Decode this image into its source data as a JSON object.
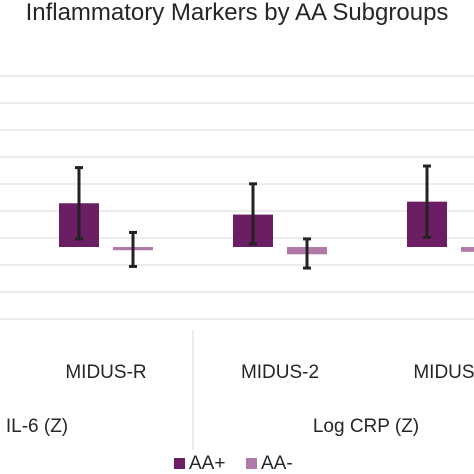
{
  "chart_data": {
    "type": "bar",
    "title": "Inflammatory Markers by AA Subgroups",
    "categories": [
      "MIDUS-R",
      "MIDUS-2",
      "MIDUS-R"
    ],
    "groups": [
      "IL-6 (Z)",
      "Log CRP (Z)"
    ],
    "group_spans": [
      [
        0,
        0
      ],
      [
        1,
        2
      ]
    ],
    "ylim": [
      -0.45,
      0.85
    ],
    "grid": true,
    "legend_position": "bottom",
    "series": [
      {
        "name": "AA+",
        "color": "#6b1e63",
        "values": [
          0.27,
          0.2,
          0.28
        ],
        "error_low": [
          0.05,
          0.02,
          0.06
        ],
        "error_high": [
          0.49,
          0.39,
          0.5
        ]
      },
      {
        "name": "AA-",
        "color": "#b07aa8",
        "values": [
          -0.02,
          -0.045,
          -0.03
        ],
        "error_low": [
          -0.12,
          -0.13,
          -0.1
        ],
        "error_high": [
          0.09,
          0.05,
          0.03
        ]
      }
    ]
  }
}
